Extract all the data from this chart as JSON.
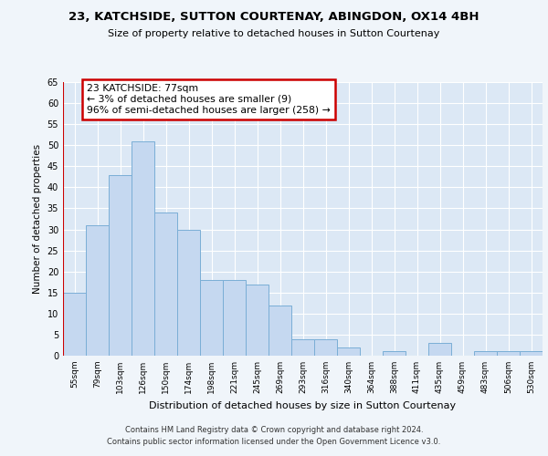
{
  "title1": "23, KATCHSIDE, SUTTON COURTENAY, ABINGDON, OX14 4BH",
  "title2": "Size of property relative to detached houses in Sutton Courtenay",
  "xlabel": "Distribution of detached houses by size in Sutton Courtenay",
  "ylabel": "Number of detached properties",
  "categories": [
    "55sqm",
    "79sqm",
    "103sqm",
    "126sqm",
    "150sqm",
    "174sqm",
    "198sqm",
    "221sqm",
    "245sqm",
    "269sqm",
    "293sqm",
    "316sqm",
    "340sqm",
    "364sqm",
    "388sqm",
    "411sqm",
    "435sqm",
    "459sqm",
    "483sqm",
    "506sqm",
    "530sqm"
  ],
  "values": [
    15,
    31,
    43,
    51,
    34,
    30,
    18,
    18,
    17,
    12,
    4,
    4,
    2,
    0,
    1,
    0,
    3,
    0,
    1,
    1,
    1
  ],
  "bar_color": "#c5d8f0",
  "bar_edge_color": "#7aaed6",
  "annotation_text": "23 KATCHSIDE: 77sqm\n← 3% of detached houses are smaller (9)\n96% of semi-detached houses are larger (258) →",
  "annotation_box_color": "#ffffff",
  "annotation_box_edge_color": "#cc0000",
  "highlight_line_color": "#cc0000",
  "ylim": [
    0,
    65
  ],
  "yticks": [
    0,
    5,
    10,
    15,
    20,
    25,
    30,
    35,
    40,
    45,
    50,
    55,
    60,
    65
  ],
  "bg_color": "#dce8f5",
  "grid_color": "#ffffff",
  "fig_bg_color": "#f0f5fa",
  "footer1": "Contains HM Land Registry data © Crown copyright and database right 2024.",
  "footer2": "Contains public sector information licensed under the Open Government Licence v3.0."
}
